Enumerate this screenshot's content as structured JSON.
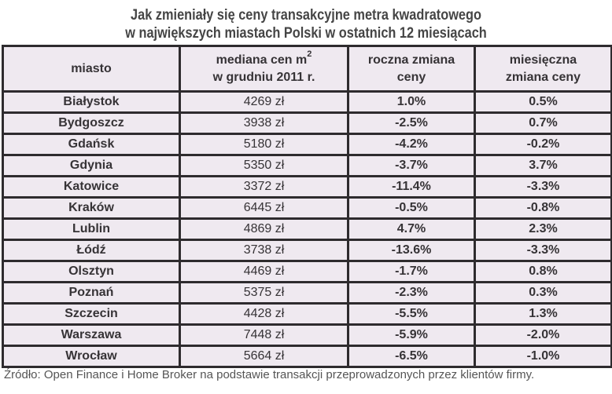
{
  "title": {
    "line1": "Jak zmieniały się ceny transakcyjne metra kwadratowego",
    "line2": "w największych miastach Polski w ostatnich 12 miesiącach"
  },
  "table": {
    "headers": {
      "city": "miasto",
      "median_line1": "mediana cen m",
      "median_sup": "2",
      "median_line2": "w grudniu 2011 r.",
      "annual_line1": "roczna zmiana",
      "annual_line2": "ceny",
      "monthly_line1": "miesięczna",
      "monthly_line2": "zmiana ceny"
    },
    "rows": [
      {
        "city": "Białystok",
        "median": "4269 zł",
        "annual": "1.0%",
        "monthly": "0.5%"
      },
      {
        "city": "Bydgoszcz",
        "median": "3938 zł",
        "annual": "-2.5%",
        "monthly": "0.7%"
      },
      {
        "city": "Gdańsk",
        "median": "5180 zł",
        "annual": "-4.2%",
        "monthly": "-0.2%"
      },
      {
        "city": "Gdynia",
        "median": "5350 zł",
        "annual": "-3.7%",
        "monthly": "3.7%"
      },
      {
        "city": "Katowice",
        "median": "3372 zł",
        "annual": "-11.4%",
        "monthly": "-3.3%"
      },
      {
        "city": "Kraków",
        "median": "6445 zł",
        "annual": "-0.5%",
        "monthly": "-0.8%"
      },
      {
        "city": "Lublin",
        "median": "4869 zł",
        "annual": "4.7%",
        "monthly": "2.3%"
      },
      {
        "city": "Łódź",
        "median": "3738 zł",
        "annual": "-13.6%",
        "monthly": "-3.3%"
      },
      {
        "city": "Olsztyn",
        "median": "4469 zł",
        "annual": "-1.7%",
        "monthly": "0.8%"
      },
      {
        "city": "Poznań",
        "median": "5375 zł",
        "annual": "-2.3%",
        "monthly": "0.3%"
      },
      {
        "city": "Szczecin",
        "median": "4428 zł",
        "annual": "-5.5%",
        "monthly": "1.3%"
      },
      {
        "city": "Warszawa",
        "median": "7448 zł",
        "annual": "-5.9%",
        "monthly": "-2.0%"
      },
      {
        "city": "Wrocław",
        "median": "5664 zł",
        "annual": "-6.5%",
        "monthly": "-1.0%"
      }
    ]
  },
  "footnote": "Źródło: Open Finance i Home Broker na podstawie transakcji przeprowadzonych przez klientów firmy.",
  "colors": {
    "table_background": "#efe9f0",
    "border": "#2e2b2e",
    "text": "#363336",
    "title": "#454545"
  },
  "chart_data": {
    "type": "table",
    "title": "Jak zmieniały się ceny transakcyjne metra kwadratowego w największych miastach Polski w ostatnich 12 miesiącach",
    "columns": [
      "miasto",
      "mediana cen m2 w grudniu 2011 r.",
      "roczna zmiana ceny",
      "miesięczna zmiana ceny"
    ],
    "categories": [
      "Białystok",
      "Bydgoszcz",
      "Gdańsk",
      "Gdynia",
      "Katowice",
      "Kraków",
      "Lublin",
      "Łódź",
      "Olsztyn",
      "Poznań",
      "Szczecin",
      "Warszawa",
      "Wrocław"
    ],
    "series": [
      {
        "name": "mediana cen m2 w grudniu 2011 r. (zł)",
        "values": [
          4269,
          3938,
          5180,
          5350,
          3372,
          6445,
          4869,
          3738,
          4469,
          5375,
          4428,
          7448,
          5664
        ]
      },
      {
        "name": "roczna zmiana ceny (%)",
        "values": [
          1.0,
          -2.5,
          -4.2,
          -3.7,
          -11.4,
          -0.5,
          4.7,
          -13.6,
          -1.7,
          -2.3,
          -5.5,
          -5.9,
          -6.5
        ]
      },
      {
        "name": "miesięczna zmiana ceny (%)",
        "values": [
          0.5,
          0.7,
          -0.2,
          3.7,
          -3.3,
          -0.8,
          2.3,
          -3.3,
          0.8,
          0.3,
          1.3,
          -2.0,
          -1.0
        ]
      }
    ],
    "source": "Źródło: Open Finance i Home Broker na podstawie transakcji przeprowadzonych przez klientów firmy."
  }
}
